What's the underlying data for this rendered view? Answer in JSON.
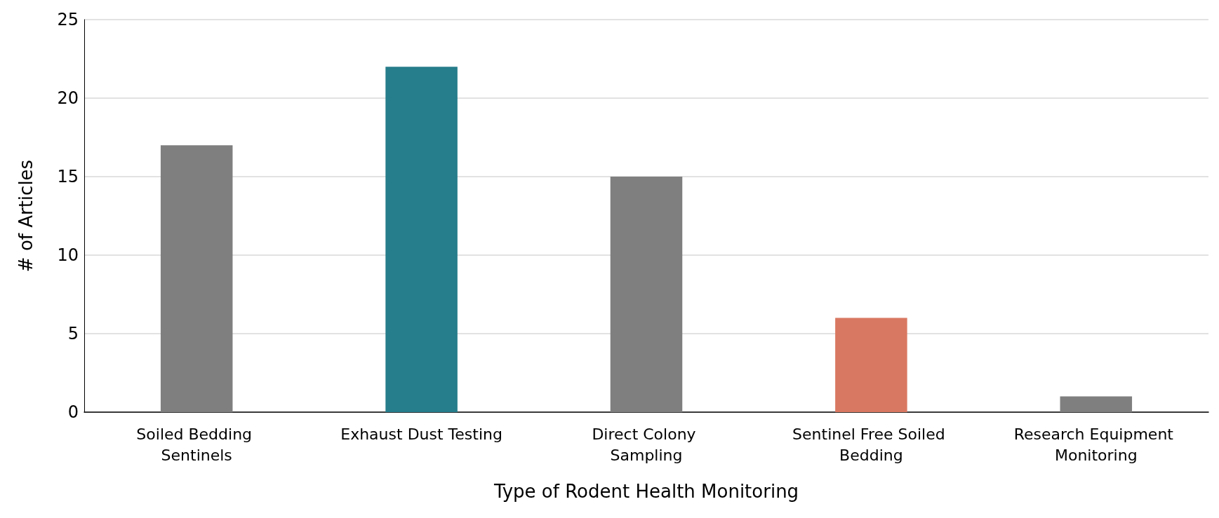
{
  "chart_data": {
    "type": "bar",
    "xlabel": "Type of Rodent Health Monitoring",
    "ylabel": "# of Articles",
    "categories": [
      "Soiled Bedding Sentinels",
      "Exhaust Dust Testing",
      "Direct Colony Sampling",
      "Sentinel Free Soiled Bedding",
      "Research Equipment Monitoring"
    ],
    "values": [
      17,
      22,
      15,
      6,
      1
    ],
    "colors": [
      "#7f7f7f",
      "#267d8b",
      "#7f7f7f",
      "#d97862",
      "#7f7f7f"
    ],
    "ylim": [
      0,
      25
    ],
    "yticks": [
      0,
      5,
      10,
      15,
      20,
      25
    ],
    "grid": "y"
  }
}
